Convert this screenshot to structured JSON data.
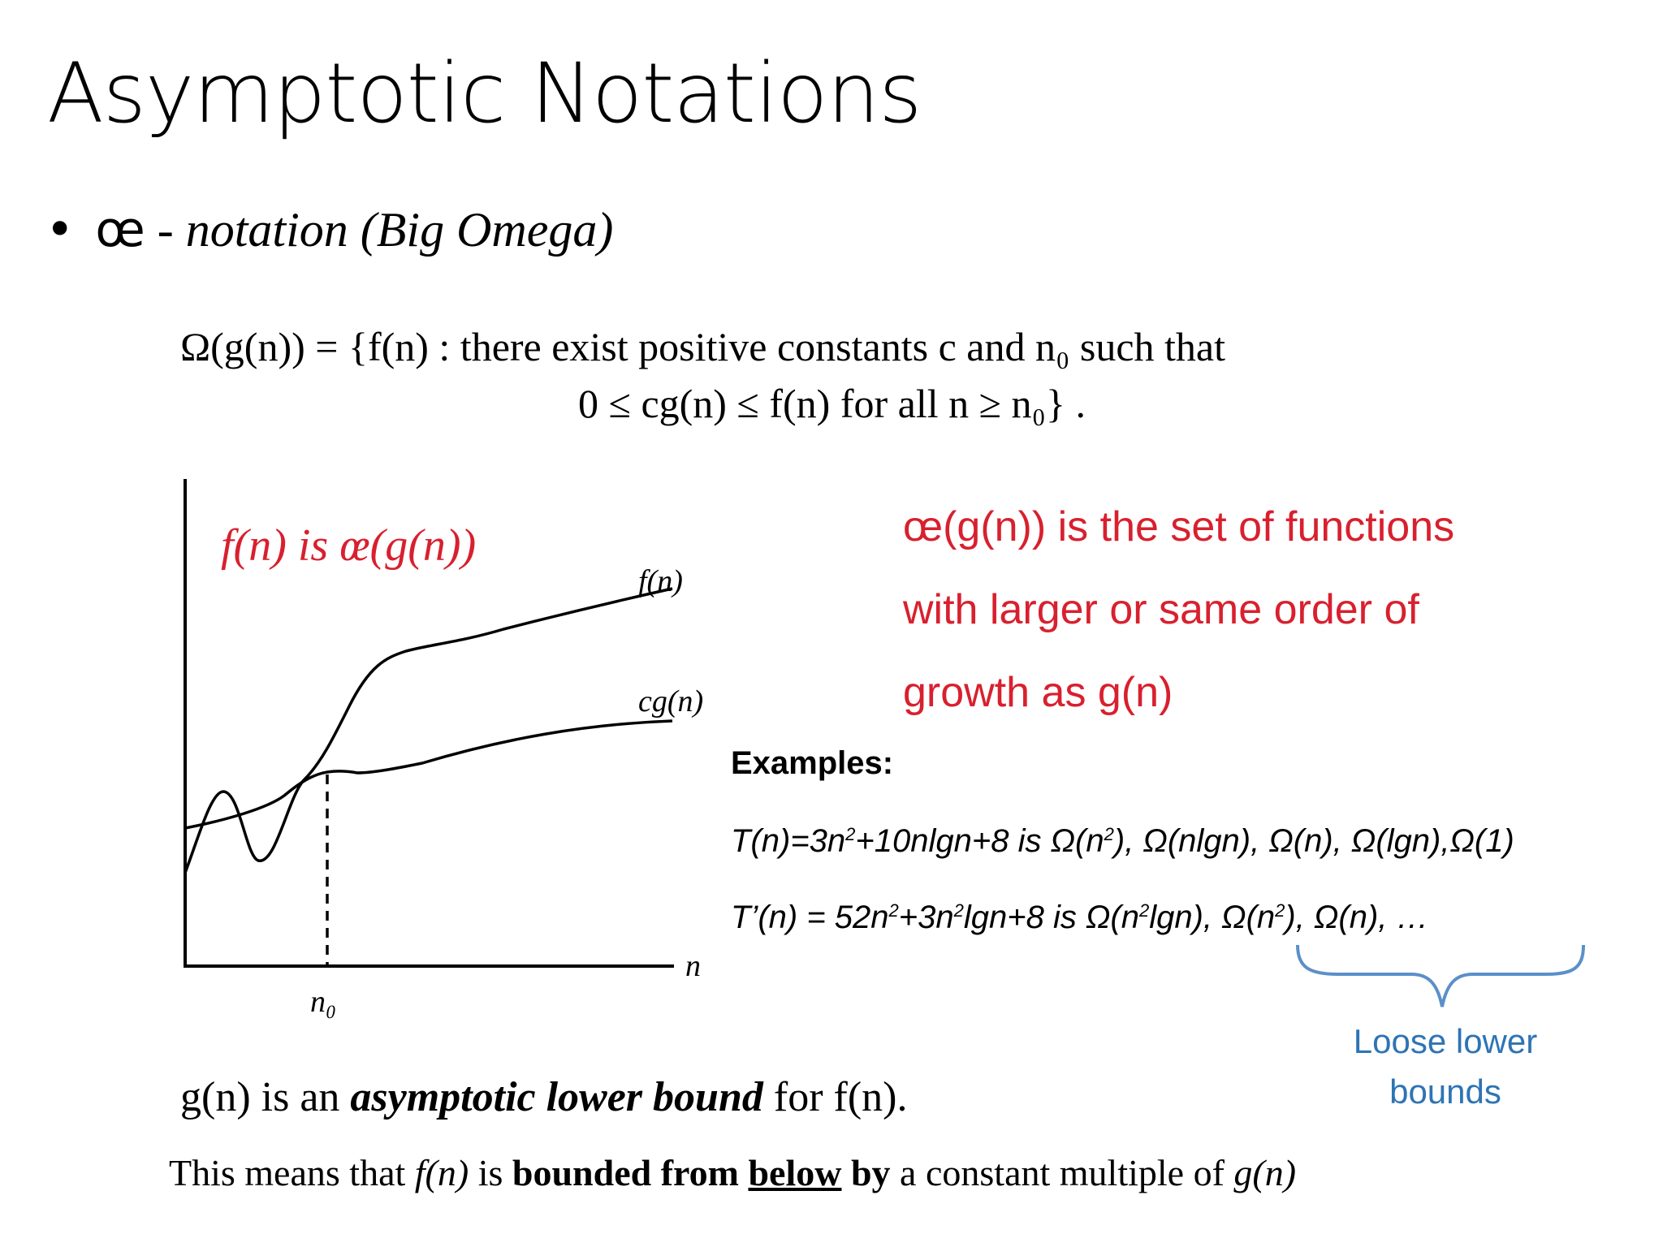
{
  "title": "Asymptotic Notations",
  "bullet": {
    "symbol": "œ",
    "text": " - notation (Big Omega)"
  },
  "definition": {
    "line1": "Ω(g(n)) = {f(n) :  there exist positive constants c and n₀ such that",
    "line2": "0 ≤ cg(n) ≤ f(n) for all n ≥ n₀} ."
  },
  "graph": {
    "caption": "f(n) is œ(g(n))",
    "f_label": "f(n)",
    "cg_label": "cg(n)",
    "x_label": "n",
    "n0_label": "n₀"
  },
  "description": {
    "line1": "œ(g(n)) is the set of functions",
    "line2": "with larger or same order of",
    "line3": "growth as g(n)"
  },
  "examples": {
    "heading": "Examples:",
    "ex1": {
      "a": "T(n)=3n",
      "a_sup": "2",
      "b": "+10nlgn+8 is Ω(n",
      "b_sup": "2",
      "c": "), Ω(nlgn), Ω(n), Ω(lgn),Ω(1)"
    },
    "ex2": {
      "a": "T’(n) = 52n",
      "a_sup": "2",
      "b": "+3n",
      "b_sup": "2",
      "c": "lgn+8 is Ω(n",
      "c_sup": "2",
      "d": "lgn), Ω(n",
      "d_sup": "2",
      "e": "), Ω(n), …"
    }
  },
  "brace_label": "Loose lower bounds",
  "lower_bound_statement": {
    "pre": "g(n) is an ",
    "emph": "asymptotic lower bound",
    "post": " for  f(n)."
  },
  "conclusion": {
    "p1": "This means that ",
    "p2": "f(n)",
    "p3": " is ",
    "p4": "bounded from ",
    "p5": "below",
    "p6": " by",
    "p7": " a constant multiple of ",
    "p8": "g(n)"
  },
  "colors": {
    "highlight_red": "#d8202e",
    "brace_blue": "#2e74b5"
  }
}
